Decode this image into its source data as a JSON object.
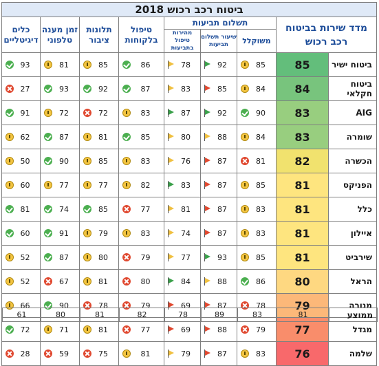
{
  "title": "ביטוח רכב רכוש 2018",
  "headers": {
    "index": "מדד שירות בביטוח רכב רכוש",
    "claims_group": "תשלום תביעות",
    "claims_share": "משוקלל",
    "claims_pay": "שיעור תשלום תביעות",
    "claims_speed": "מהירות טיפול בתביעות",
    "customer_care": "טיפול בלקוחות",
    "complaints": "תלונות ציבור",
    "phone": "זמן מענה טלפוני",
    "digital": "כלים דיגיטליים"
  },
  "average_label": "ממוצע",
  "average": {
    "index": "81",
    "claims_share": "83",
    "claims_pay": "89",
    "claims_speed": "78",
    "customer_care": "82",
    "complaints": "81",
    "phone": "80",
    "digital": "61"
  },
  "colors": {
    "good": "#4caf50",
    "mid": "#f4c542",
    "bad": "#e0482f",
    "header_text": "#1f4e9a",
    "title_bg": "#dfe9f7"
  },
  "rows": [
    {
      "name": "ביטוח ישיר",
      "index": "85",
      "index_color": "#63be7b",
      "claims_share": {
        "v": "85",
        "s": "mid"
      },
      "claims_pay": {
        "v": "92",
        "s": "good"
      },
      "claims_speed": {
        "v": "78",
        "s": "mid"
      },
      "customer_care": {
        "v": "86",
        "s": "good"
      },
      "complaints": {
        "v": "85",
        "s": "mid"
      },
      "phone": {
        "v": "81",
        "s": "mid"
      },
      "digital": {
        "v": "93",
        "s": "good"
      }
    },
    {
      "name": "ביטוח חקלאי",
      "index": "84",
      "index_color": "#78c47d",
      "claims_share": {
        "v": "84",
        "s": "mid"
      },
      "claims_pay": {
        "v": "85",
        "s": "bad"
      },
      "claims_speed": {
        "v": "83",
        "s": "mid"
      },
      "customer_care": {
        "v": "87",
        "s": "good"
      },
      "complaints": {
        "v": "92",
        "s": "good"
      },
      "phone": {
        "v": "93",
        "s": "good"
      },
      "digital": {
        "v": "27",
        "s": "bad"
      }
    },
    {
      "name": "AIG",
      "index": "83",
      "index_color": "#98ce7f",
      "claims_share": {
        "v": "90",
        "s": "good"
      },
      "claims_pay": {
        "v": "92",
        "s": "good"
      },
      "claims_speed": {
        "v": "87",
        "s": "good"
      },
      "customer_care": {
        "v": "83",
        "s": "mid"
      },
      "complaints": {
        "v": "72",
        "s": "bad"
      },
      "phone": {
        "v": "72",
        "s": "mid"
      },
      "digital": {
        "v": "91",
        "s": "good"
      }
    },
    {
      "name": "שומרה",
      "index": "83",
      "index_color": "#98ce7f",
      "claims_share": {
        "v": "84",
        "s": "mid"
      },
      "claims_pay": {
        "v": "88",
        "s": "mid"
      },
      "claims_speed": {
        "v": "80",
        "s": "mid"
      },
      "customer_care": {
        "v": "85",
        "s": "good"
      },
      "complaints": {
        "v": "81",
        "s": "mid"
      },
      "phone": {
        "v": "87",
        "s": "good"
      },
      "digital": {
        "v": "62",
        "s": "mid"
      }
    },
    {
      "name": "הכשרה",
      "index": "82",
      "index_color": "#f1e26e",
      "claims_share": {
        "v": "81",
        "s": "bad"
      },
      "claims_pay": {
        "v": "87",
        "s": "bad"
      },
      "claims_speed": {
        "v": "76",
        "s": "mid"
      },
      "customer_care": {
        "v": "83",
        "s": "mid"
      },
      "complaints": {
        "v": "85",
        "s": "mid"
      },
      "phone": {
        "v": "90",
        "s": "good"
      },
      "digital": {
        "v": "50",
        "s": "mid"
      }
    },
    {
      "name": "הפניקס",
      "index": "81",
      "index_color": "#fee57f",
      "claims_share": {
        "v": "85",
        "s": "mid"
      },
      "claims_pay": {
        "v": "87",
        "s": "bad"
      },
      "claims_speed": {
        "v": "83",
        "s": "good"
      },
      "customer_care": {
        "v": "82",
        "s": "mid"
      },
      "complaints": {
        "v": "77",
        "s": "mid"
      },
      "phone": {
        "v": "77",
        "s": "mid"
      },
      "digital": {
        "v": "60",
        "s": "mid"
      }
    },
    {
      "name": "כלל",
      "index": "81",
      "index_color": "#fee57f",
      "claims_share": {
        "v": "83",
        "s": "mid"
      },
      "claims_pay": {
        "v": "87",
        "s": "bad"
      },
      "claims_speed": {
        "v": "81",
        "s": "mid"
      },
      "customer_care": {
        "v": "77",
        "s": "bad"
      },
      "complaints": {
        "v": "85",
        "s": "good"
      },
      "phone": {
        "v": "74",
        "s": "good"
      },
      "digital": {
        "v": "81",
        "s": "good"
      }
    },
    {
      "name": "איילון",
      "index": "81",
      "index_color": "#fee57f",
      "claims_share": {
        "v": "83",
        "s": "mid"
      },
      "claims_pay": {
        "v": "87",
        "s": "bad"
      },
      "claims_speed": {
        "v": "74",
        "s": "mid"
      },
      "customer_care": {
        "v": "83",
        "s": "mid"
      },
      "complaints": {
        "v": "79",
        "s": "mid"
      },
      "phone": {
        "v": "91",
        "s": "good"
      },
      "digital": {
        "v": "60",
        "s": "good"
      }
    },
    {
      "name": "שירביט",
      "index": "81",
      "index_color": "#fee57f",
      "claims_share": {
        "v": "85",
        "s": "mid"
      },
      "claims_pay": {
        "v": "93",
        "s": "good"
      },
      "claims_speed": {
        "v": "77",
        "s": "mid"
      },
      "customer_care": {
        "v": "79",
        "s": "bad"
      },
      "complaints": {
        "v": "80",
        "s": "mid"
      },
      "phone": {
        "v": "87",
        "s": "good"
      },
      "digital": {
        "v": "52",
        "s": "mid"
      }
    },
    {
      "name": "הראל",
      "index": "80",
      "index_color": "#fed881",
      "claims_share": {
        "v": "86",
        "s": "good"
      },
      "claims_pay": {
        "v": "88",
        "s": "mid"
      },
      "claims_speed": {
        "v": "84",
        "s": "good"
      },
      "customer_care": {
        "v": "80",
        "s": "bad"
      },
      "complaints": {
        "v": "81",
        "s": "mid"
      },
      "phone": {
        "v": "67",
        "s": "bad"
      },
      "digital": {
        "v": "52",
        "s": "mid"
      }
    },
    {
      "name": "מנורה",
      "index": "79",
      "index_color": "#fcb879",
      "claims_share": {
        "v": "78",
        "s": "bad"
      },
      "claims_pay": {
        "v": "87",
        "s": "bad"
      },
      "claims_speed": {
        "v": "69",
        "s": "bad"
      },
      "customer_care": {
        "v": "79",
        "s": "bad"
      },
      "complaints": {
        "v": "78",
        "s": "bad"
      },
      "phone": {
        "v": "90",
        "s": "good"
      },
      "digital": {
        "v": "66",
        "s": "mid"
      }
    },
    {
      "name": "מגדל",
      "index": "77",
      "index_color": "#f98d6b",
      "claims_share": {
        "v": "79",
        "s": "bad"
      },
      "claims_pay": {
        "v": "88",
        "s": "bad"
      },
      "claims_speed": {
        "v": "69",
        "s": "bad"
      },
      "customer_care": {
        "v": "77",
        "s": "bad"
      },
      "complaints": {
        "v": "81",
        "s": "mid"
      },
      "phone": {
        "v": "71",
        "s": "mid"
      },
      "digital": {
        "v": "72",
        "s": "good"
      }
    },
    {
      "name": "שלמה",
      "index": "76",
      "index_color": "#f8696b",
      "claims_share": {
        "v": "83",
        "s": "mid"
      },
      "claims_pay": {
        "v": "87",
        "s": "bad"
      },
      "claims_speed": {
        "v": "79",
        "s": "mid"
      },
      "customer_care": {
        "v": "81",
        "s": "mid"
      },
      "complaints": {
        "v": "75",
        "s": "bad"
      },
      "phone": {
        "v": "59",
        "s": "bad"
      },
      "digital": {
        "v": "28",
        "s": "bad"
      }
    }
  ],
  "chart_data": {
    "type": "table",
    "title": "ביטוח רכב רכוש 2018",
    "columns": [
      "מדד שירות בביטוח רכב רכוש",
      "משוקלל",
      "שיעור תשלום תביעות",
      "מהירות טיפול בתביעות",
      "טיפול בלקוחות",
      "תלונות ציבור",
      "זמן מענה טלפוני",
      "כלים דיגיטליים"
    ],
    "categories": [
      "ביטוח ישיר",
      "ביטוח חקלאי",
      "AIG",
      "שומרה",
      "הכשרה",
      "הפניקס",
      "כלל",
      "איילון",
      "שירביט",
      "הראל",
      "מנורה",
      "מגדל",
      "שלמה"
    ],
    "series": [
      {
        "name": "מדד שירות בביטוח רכב רכוש",
        "values": [
          85,
          84,
          83,
          83,
          82,
          81,
          81,
          81,
          81,
          80,
          79,
          77,
          76
        ]
      },
      {
        "name": "משוקלל",
        "values": [
          85,
          84,
          90,
          84,
          81,
          85,
          83,
          83,
          85,
          86,
          78,
          79,
          83
        ]
      },
      {
        "name": "שיעור תשלום תביעות",
        "values": [
          92,
          85,
          92,
          88,
          87,
          87,
          87,
          87,
          93,
          88,
          87,
          88,
          87
        ]
      },
      {
        "name": "מהירות טיפול בתביעות",
        "values": [
          78,
          83,
          87,
          80,
          76,
          83,
          81,
          74,
          77,
          84,
          69,
          69,
          79
        ]
      },
      {
        "name": "טיפול בלקוחות",
        "values": [
          86,
          87,
          83,
          85,
          83,
          82,
          77,
          83,
          79,
          80,
          79,
          77,
          81
        ]
      },
      {
        "name": "תלונות ציבור",
        "values": [
          85,
          92,
          72,
          81,
          85,
          77,
          85,
          79,
          80,
          81,
          78,
          81,
          75
        ]
      },
      {
        "name": "זמן מענה טלפוני",
        "values": [
          81,
          93,
          72,
          87,
          90,
          77,
          74,
          91,
          87,
          67,
          90,
          71,
          59
        ]
      },
      {
        "name": "כלים דיגיטליים",
        "values": [
          93,
          27,
          91,
          62,
          50,
          60,
          81,
          60,
          52,
          52,
          66,
          72,
          28
        ]
      }
    ],
    "averages": {
      "name": "ממוצע",
      "values": [
        81,
        83,
        89,
        78,
        82,
        81,
        80,
        61
      ]
    }
  }
}
